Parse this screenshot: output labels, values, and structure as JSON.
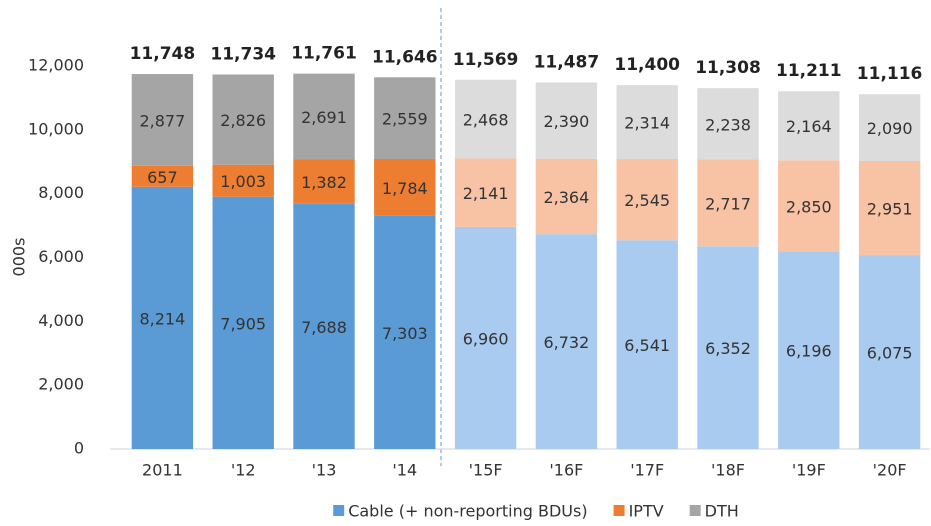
{
  "chart_data": {
    "type": "stacked-bar",
    "y_label": "000s",
    "categories": [
      "2011",
      "'12",
      "'13",
      "'14",
      "'15F",
      "'16F",
      "'17F",
      "'18F",
      "'19F",
      "'20F"
    ],
    "series": [
      {
        "name": "Cable (+ non-reporting BDUs)",
        "color": "#5b9bd5",
        "colors": [
          "#5b9bd5",
          "#5b9bd5",
          "#5b9bd5",
          "#5b9bd5",
          "#a9cbef",
          "#a9cbef",
          "#a9cbef",
          "#a9cbef",
          "#a9cbef",
          "#a9cbef"
        ],
        "values": [
          8214,
          7905,
          7688,
          7303,
          6960,
          6732,
          6541,
          6352,
          6196,
          6075
        ],
        "value_labels": [
          "8,214",
          "7,905",
          "7,688",
          "7,303",
          "6,960",
          "6,732",
          "6,541",
          "6,352",
          "6,196",
          "6,075"
        ]
      },
      {
        "name": "IPTV",
        "color": "#ed7d31",
        "colors": [
          "#ed7d31",
          "#ed7d31",
          "#ed7d31",
          "#ed7d31",
          "#f8c3a5",
          "#f8c3a5",
          "#f8c3a5",
          "#f8c3a5",
          "#f8c3a5",
          "#f8c3a5"
        ],
        "values": [
          657,
          1003,
          1382,
          1784,
          2141,
          2364,
          2545,
          2717,
          2850,
          2951
        ],
        "value_labels": [
          "657",
          "1,003",
          "1,382",
          "1,784",
          "2,141",
          "2,364",
          "2,545",
          "2,717",
          "2,850",
          "2,951"
        ]
      },
      {
        "name": "DTH",
        "color": "#a5a5a5",
        "colors": [
          "#a5a5a5",
          "#a5a5a5",
          "#a5a5a5",
          "#a5a5a5",
          "#dcdcdc",
          "#dcdcdc",
          "#dcdcdc",
          "#dcdcdc",
          "#dcdcdc",
          "#dcdcdc"
        ],
        "values": [
          2877,
          2826,
          2691,
          2559,
          2468,
          2390,
          2314,
          2238,
          2164,
          2090
        ],
        "value_labels": [
          "2,877",
          "2,826",
          "2,691",
          "2,559",
          "2,468",
          "2,390",
          "2,314",
          "2,238",
          "2,164",
          "2,090"
        ]
      }
    ],
    "totals": {
      "values": [
        11748,
        11734,
        11761,
        11646,
        11569,
        11487,
        11400,
        11308,
        11211,
        11116
      ],
      "value_labels": [
        "11,748",
        "11,734",
        "11,761",
        "11,646",
        "11,569",
        "11,487",
        "11,400",
        "11,308",
        "11,211",
        "11,116"
      ]
    },
    "ylim": [
      0,
      12000
    ],
    "yticks": [
      0,
      {
        "value": 2000,
        "label": "2,000"
      },
      {
        "value": 4000,
        "label": "4,000"
      },
      {
        "value": 6000,
        "label": "6,000"
      },
      {
        "value": 8000,
        "label": "8,000"
      },
      {
        "value": 10000,
        "label": "10,000"
      },
      {
        "value": 12000,
        "label": "12,000"
      }
    ],
    "legend": "bottom"
  }
}
